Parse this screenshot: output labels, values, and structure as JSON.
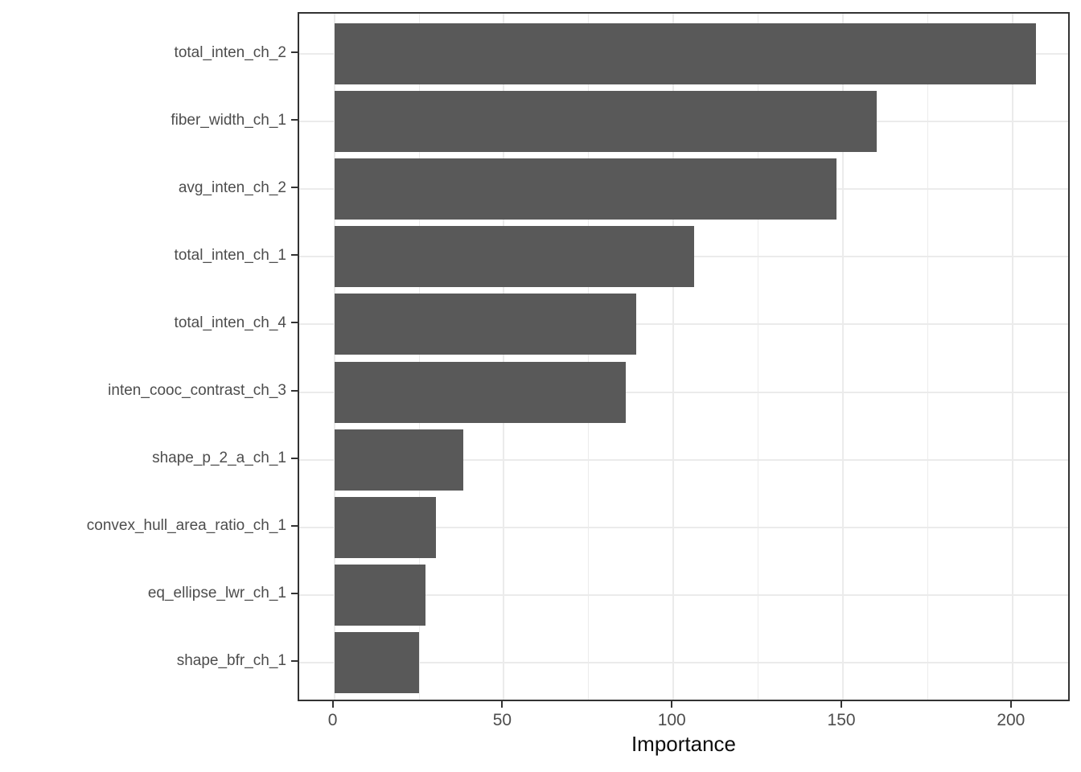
{
  "chart_data": {
    "type": "bar",
    "orientation": "horizontal",
    "title": "",
    "xlabel": "Importance",
    "ylabel": "",
    "categories": [
      "total_inten_ch_2",
      "fiber_width_ch_1",
      "avg_inten_ch_2",
      "total_inten_ch_1",
      "total_inten_ch_4",
      "inten_cooc_contrast_ch_3",
      "shape_p_2_a_ch_1",
      "convex_hull_area_ratio_ch_1",
      "eq_ellipse_lwr_ch_1",
      "shape_bfr_ch_1"
    ],
    "values": [
      207,
      160,
      148,
      106,
      89,
      86,
      38,
      30,
      27,
      25
    ],
    "x_ticks": [
      0,
      50,
      100,
      150,
      200
    ],
    "x_minor_ticks": [
      25,
      75,
      125,
      175
    ],
    "xlim": [
      -10.35,
      217.35
    ],
    "grid": "on",
    "legend": "none",
    "bar_color": "#595959",
    "panel_border_color": "#333333",
    "gridline_color": "#ebebeb",
    "axis_text_color": "#4d4d4d",
    "axis_title_color": "#0d0d0d",
    "background_color": "#ffffff"
  }
}
